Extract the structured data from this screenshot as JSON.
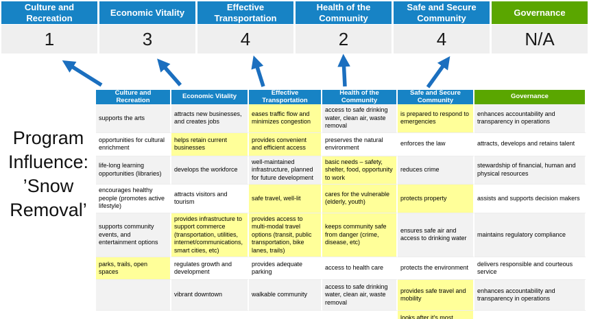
{
  "title": "Program Influence: ’Snow Removal’",
  "colors": {
    "header_blue": "#1783c5",
    "header_green": "#5aa600",
    "highlight_yellow": "#ffff99",
    "band_gray": "#f2f2f2",
    "score_bg": "#efefef",
    "arrow_blue": "#1b6fbf"
  },
  "scoreboard": {
    "columns": [
      {
        "label": "Culture and Recreation",
        "score": "1",
        "theme": "blue"
      },
      {
        "label": "Economic Vitality",
        "score": "3",
        "theme": "blue"
      },
      {
        "label": "Effective Transportation",
        "score": "4",
        "theme": "blue"
      },
      {
        "label": "Health of the Community",
        "score": "2",
        "theme": "blue"
      },
      {
        "label": "Safe and Secure Community",
        "score": "4",
        "theme": "blue"
      },
      {
        "label": "Governance",
        "score": "N/A",
        "theme": "green"
      }
    ]
  },
  "arrows": {
    "description": "blue arrows pointing from matrix columns up to scores",
    "directions": [
      "up-left",
      "up-left",
      "up",
      "up",
      "up-right"
    ]
  },
  "matrix": {
    "headers": [
      "Culture and Recreation",
      "Economic Vitality",
      "Effective Transportation",
      "Health of the Community",
      "Safe and Secure Community",
      "Governance"
    ],
    "rows": [
      [
        {
          "t": "supports the arts",
          "hl": false
        },
        {
          "t": "attracts new businesses, and creates jobs",
          "hl": false
        },
        {
          "t": "eases traffic flow and minimizes congestion",
          "hl": true
        },
        {
          "t": "access to safe drinking water, clean air, waste removal",
          "hl": false
        },
        {
          "t": "is prepared to respond to emergencies",
          "hl": true
        },
        {
          "t": "enhances accountability and transparency in operations",
          "hl": false
        }
      ],
      [
        {
          "t": "opportunities for cultural enrichment",
          "hl": false
        },
        {
          "t": "helps retain current businesses",
          "hl": true
        },
        {
          "t": "provides convenient and efficient access",
          "hl": true
        },
        {
          "t": "preserves the natural environment",
          "hl": false
        },
        {
          "t": "enforces the law",
          "hl": false
        },
        {
          "t": "attracts, develops and retains talent",
          "hl": false
        }
      ],
      [
        {
          "t": "life-long learning opportunities (libraries)",
          "hl": false
        },
        {
          "t": "develops the workforce",
          "hl": false
        },
        {
          "t": "well-maintained infrastructure, planned for future development",
          "hl": false
        },
        {
          "t": "basic needs – safety, shelter, food, opportunity to work",
          "hl": true
        },
        {
          "t": "reduces crime",
          "hl": false
        },
        {
          "t": "stewardship of financial, human and physical resources",
          "hl": false
        }
      ],
      [
        {
          "t": "encourages healthy people (promotes active lifestyle)",
          "hl": false
        },
        {
          "t": "attracts visitors and tourism",
          "hl": false
        },
        {
          "t": "safe travel, well-lit",
          "hl": true
        },
        {
          "t": "cares for the vulnerable (elderly, youth)",
          "hl": true
        },
        {
          "t": "protects property",
          "hl": true
        },
        {
          "t": "assists and supports decision makers",
          "hl": false
        }
      ],
      [
        {
          "t": "supports community events, and entertainment options",
          "hl": false
        },
        {
          "t": "provides infrastructure to support commerce (transportation, utilities, internet/communications, smart cities, etc)",
          "hl": true
        },
        {
          "t": "provides access to multi-modal travel options (transit, public transportation, bike lanes, trails)",
          "hl": true
        },
        {
          "t": "keeps community safe from danger (crime, disease, etc)",
          "hl": true
        },
        {
          "t": "ensures safe air and access to drinking water",
          "hl": false
        },
        {
          "t": "maintains regulatory compliance",
          "hl": false
        }
      ],
      [
        {
          "t": "parks, trails, open spaces",
          "hl": true
        },
        {
          "t": "regulates growth and development",
          "hl": false
        },
        {
          "t": "provides adequate parking",
          "hl": false
        },
        {
          "t": "access to health care",
          "hl": false
        },
        {
          "t": "protects the environment",
          "hl": false
        },
        {
          "t": "delivers responsible and courteous service",
          "hl": false
        }
      ],
      [
        {
          "t": "",
          "hl": false
        },
        {
          "t": "vibrant downtown",
          "hl": false
        },
        {
          "t": "walkable community",
          "hl": false
        },
        {
          "t": "access to safe drinking water, clean air, waste removal",
          "hl": false
        },
        {
          "t": "provides safe travel and mobility",
          "hl": true
        },
        {
          "t": "enhances accountability and transparency in operations",
          "hl": false
        }
      ],
      [
        {
          "t": "",
          "hl": false
        },
        {
          "t": "",
          "hl": false
        },
        {
          "t": "",
          "hl": false
        },
        {
          "t": "",
          "hl": false
        },
        {
          "t": "looks after it's most vulnerable",
          "hl": true
        },
        {
          "t": "",
          "hl": false
        }
      ]
    ]
  }
}
